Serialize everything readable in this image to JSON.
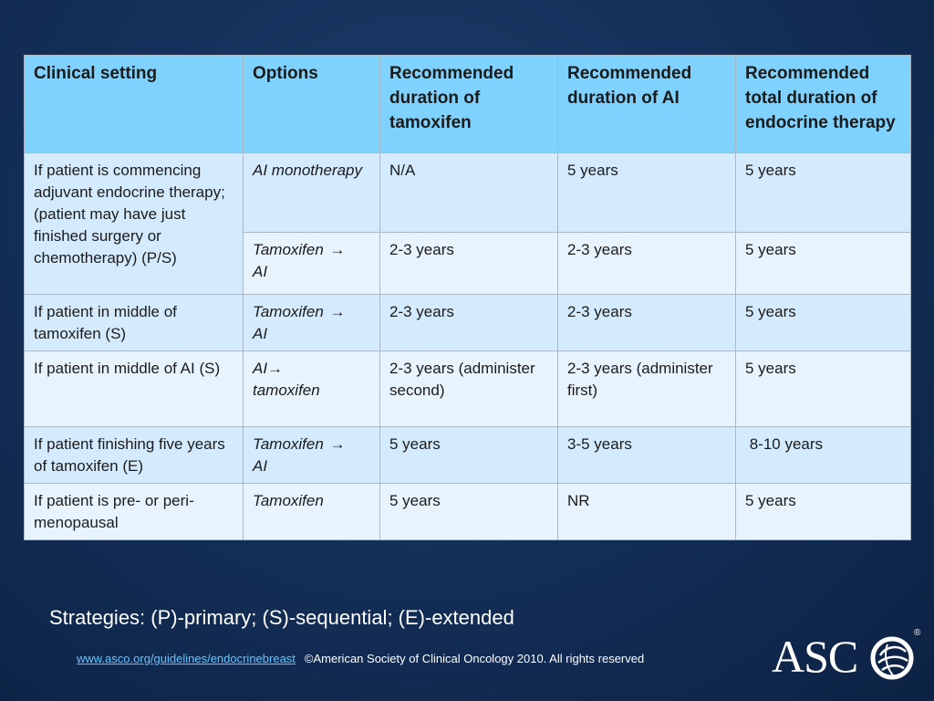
{
  "table": {
    "headers": [
      "Clinical setting",
      "Options",
      "Recommended duration of tamoxifen",
      "Recommended duration of AI",
      "Recommended total duration of endocrine therapy"
    ],
    "arrow": "→",
    "rows": [
      {
        "setting": "If patient is commencing adjuvant endocrine therapy; (patient may have just finished surgery or chemotherapy) (P/S)",
        "option": "AI monotherapy",
        "tamoxifen": "N/A",
        "ai": "5 years",
        "total": "5 years"
      },
      {
        "option_a": "Tamoxifen",
        "option_b": "AI",
        "tamoxifen": "2-3 years",
        "ai": "2-3 years",
        "total": "5 years"
      },
      {
        "setting": "If patient in middle of tamoxifen (S)",
        "option_a": "Tamoxifen",
        "option_b": "AI",
        "tamoxifen": "2-3 years",
        "ai": "2-3 years",
        "total": "5 years"
      },
      {
        "setting": "If patient in middle of AI (S)",
        "option_a": "AI",
        "option_b": "tamoxifen",
        "tamoxifen": "2-3 years (administer second)",
        "ai": "2-3 years (administer first)",
        "total": "5 years"
      },
      {
        "setting": "If patient finishing five years of tamoxifen (E)",
        "option_a": "Tamoxifen",
        "option_b": "AI",
        "tamoxifen": "5 years",
        "ai": "3-5 years",
        "total": " 8-10 years"
      },
      {
        "setting": "If patient is pre- or peri-menopausal",
        "option": "Tamoxifen",
        "tamoxifen": "5 years",
        "ai": "NR",
        "total": "5 years"
      }
    ]
  },
  "strategies": "Strategies:  (P)-primary; (S)-sequential; (E)-extended",
  "footer": {
    "link": "www.asco.org/guidelines/endocrinebreast",
    "copyright": "©American Society of Clinical Oncology 2010.  All rights reserved"
  },
  "logo": {
    "text": "ASC",
    "registered": "®"
  },
  "colors": {
    "background": "#14305a",
    "header_fill": "#7fd2fd",
    "row_light": "#e8f4fd",
    "row_dark": "#d4ebfd",
    "link": "#5fc8ff"
  }
}
